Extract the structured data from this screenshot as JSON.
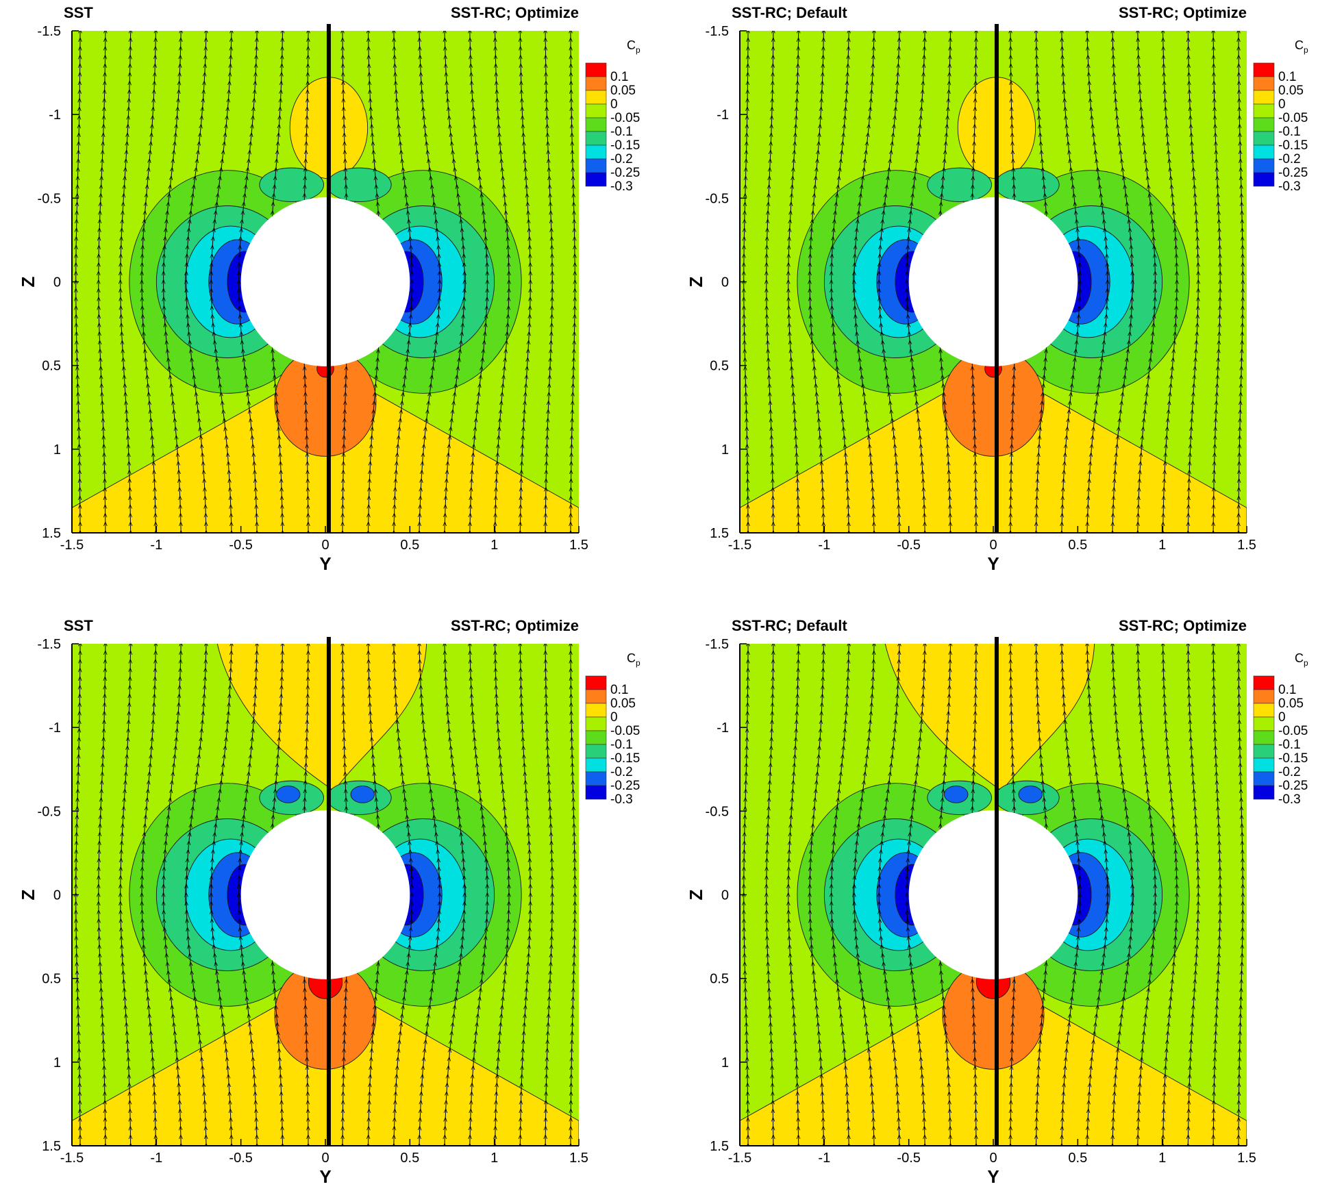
{
  "chart_data": [
    {
      "type": "contour",
      "panel": "top-left",
      "title_left": "SST",
      "title_right": "SST-RC; Optimize",
      "xlabel": "Y",
      "ylabel": "Z",
      "xlim": [
        -1.5,
        1.5
      ],
      "ylim": [
        -1.5,
        1.5
      ],
      "x_ticks": [
        "-1.5",
        "-1",
        "-0.5",
        "0",
        "0.5",
        "1",
        "1.5"
      ],
      "y_ticks": [
        "-1.5",
        "-1",
        "-0.5",
        "0",
        "0.5",
        "1",
        "1.5"
      ],
      "legend_title": "Cp",
      "legend_levels": [
        "0.1",
        "0.05",
        "0",
        "-0.05",
        "-0.1",
        "-0.15",
        "-0.2",
        "-0.25",
        "-0.3"
      ],
      "legend_colors": [
        "#ff0000",
        "#ff7f1a",
        "#ffe000",
        "#a8f000",
        "#5cdc1a",
        "#28d07a",
        "#00e0e0",
        "#1060f0",
        "#0000e0"
      ],
      "cylinder": {
        "center_y": 0,
        "center_z": 0,
        "radius": 0.5
      },
      "top_bubble": "small",
      "vortex_min_cp": -0.1
    },
    {
      "type": "contour",
      "panel": "top-right",
      "title_left": "SST-RC; Default",
      "title_right": "SST-RC; Optimize",
      "xlabel": "Y",
      "ylabel": "Z",
      "xlim": [
        -1.5,
        1.5
      ],
      "ylim": [
        -1.5,
        1.5
      ],
      "x_ticks": [
        "-1.5",
        "-1",
        "-0.5",
        "0",
        "0.5",
        "1",
        "1.5"
      ],
      "y_ticks": [
        "-1.5",
        "-1",
        "-0.5",
        "0",
        "0.5",
        "1",
        "1.5"
      ],
      "legend_title": "Cp",
      "legend_levels": [
        "0.1",
        "0.05",
        "0",
        "-0.05",
        "-0.1",
        "-0.15",
        "-0.2",
        "-0.25",
        "-0.3"
      ],
      "legend_colors": [
        "#ff0000",
        "#ff7f1a",
        "#ffe000",
        "#a8f000",
        "#5cdc1a",
        "#28d07a",
        "#00e0e0",
        "#1060f0",
        "#0000e0"
      ],
      "cylinder": {
        "center_y": 0,
        "center_z": 0,
        "radius": 0.5
      },
      "top_bubble": "small",
      "vortex_min_cp": -0.1
    },
    {
      "type": "contour",
      "panel": "bottom-left",
      "title_left": "SST",
      "title_right": "SST-RC; Optimize",
      "xlabel": "Y",
      "ylabel": "Z",
      "xlim": [
        -1.5,
        1.5
      ],
      "ylim": [
        -1.5,
        1.5
      ],
      "x_ticks": [
        "-1.5",
        "-1",
        "-0.5",
        "0",
        "0.5",
        "1",
        "1.5"
      ],
      "y_ticks": [
        "-1.5",
        "-1",
        "-0.5",
        "0",
        "0.5",
        "1",
        "1.5"
      ],
      "legend_title": "Cp",
      "legend_levels": [
        "0.1",
        "0.05",
        "0",
        "-0.05",
        "-0.1",
        "-0.15",
        "-0.2",
        "-0.25",
        "-0.3"
      ],
      "legend_colors": [
        "#ff0000",
        "#ff7f1a",
        "#ffe000",
        "#a8f000",
        "#5cdc1a",
        "#28d07a",
        "#00e0e0",
        "#1060f0",
        "#0000e0"
      ],
      "cylinder": {
        "center_y": 0,
        "center_z": 0,
        "radius": 0.5
      },
      "top_bubble": "large",
      "vortex_min_cp": -0.2
    },
    {
      "type": "contour",
      "panel": "bottom-right",
      "title_left": "SST-RC; Default",
      "title_right": "SST-RC; Optimize",
      "xlabel": "Y",
      "ylabel": "Z",
      "xlim": [
        -1.5,
        1.5
      ],
      "ylim": [
        -1.5,
        1.5
      ],
      "x_ticks": [
        "-1.5",
        "-1",
        "-0.5",
        "0",
        "0.5",
        "1",
        "1.5"
      ],
      "y_ticks": [
        "-1.5",
        "-1",
        "-0.5",
        "0",
        "0.5",
        "1",
        "1.5"
      ],
      "legend_title": "Cp",
      "legend_levels": [
        "0.1",
        "0.05",
        "0",
        "-0.05",
        "-0.1",
        "-0.15",
        "-0.2",
        "-0.25",
        "-0.3"
      ],
      "legend_colors": [
        "#ff0000",
        "#ff7f1a",
        "#ffe000",
        "#a8f000",
        "#5cdc1a",
        "#28d07a",
        "#00e0e0",
        "#1060f0",
        "#0000e0"
      ],
      "cylinder": {
        "center_y": 0,
        "center_z": 0,
        "radius": 0.5
      },
      "top_bubble": "large",
      "vortex_min_cp": -0.2
    }
  ]
}
